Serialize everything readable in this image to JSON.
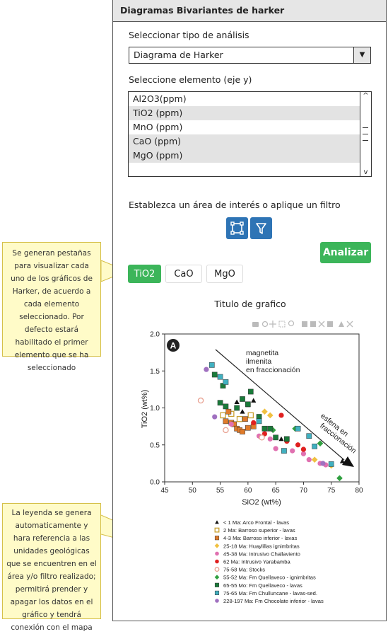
{
  "panel": {
    "title": "Diagramas Bivariantes de harker",
    "analysis_label": "Seleccionar tipo de análisis",
    "analysis_value": "Diagrama de Harker",
    "element_label": "Seleccione elemento (eje y)",
    "elements": [
      {
        "label": "Al2O3(ppm)",
        "selected": false
      },
      {
        "label": "TiO2 (ppm)",
        "selected": true
      },
      {
        "label": "MnO (ppm)",
        "selected": false
      },
      {
        "label": "CaO (ppm)",
        "selected": true
      },
      {
        "label": "MgO (ppm)",
        "selected": true
      }
    ],
    "filter_label": "Establezca un área de interés o aplique un filtro",
    "analyze_button": "Analizar",
    "tabs": [
      "TiO2",
      "CaO",
      "MgO"
    ],
    "active_tab": "TiO2",
    "chart_title": "Titulo de grafico"
  },
  "notes": {
    "tabs_note": "Se generan pestañas para visualizar cada uno de los gráficos de Harker, de acuerdo a cada elemento seleccionado. Por defecto estará habilitado el primer elemento que se ha seleccionado",
    "legend_note": "La leyenda se genera automaticamente y hara referencia a las unidades geológicas que se encuentren en el área y/o filtro realizado; permitirá prender y apagar los datos en el gráfico y tendrá conexión con el mapa"
  },
  "chart_data": {
    "type": "scatter",
    "panel_letter": "A",
    "xlabel": "SiO2 (wt%)",
    "ylabel": "TiO2 (wt%)",
    "xlim": [
      45,
      80
    ],
    "ylim": [
      0.0,
      2.0
    ],
    "xticks": [
      45,
      50,
      55,
      60,
      65,
      70,
      75,
      80
    ],
    "yticks": [
      "0.0",
      "0.5",
      "1.0",
      "1.5",
      "2.0"
    ],
    "annotations": [
      "magnetita",
      "ilmenita",
      "en fraccionación",
      "esfena en",
      "fraccionación"
    ],
    "series": [
      {
        "name": "< 1 Ma: Arco Frontal - lavas",
        "marker": "triangle",
        "color": "#111111",
        "points": [
          [
            58,
            1.08
          ],
          [
            60,
            1.04
          ],
          [
            61,
            1.1
          ],
          [
            59,
            0.95
          ],
          [
            66,
            0.58
          ],
          [
            77,
            0.28
          ]
        ]
      },
      {
        "name": "2 Ma: Barroso superior - lavas",
        "marker": "square-open",
        "color": "#c8a030",
        "points": [
          [
            55.5,
            0.9
          ],
          [
            57,
            0.92
          ],
          [
            58.5,
            0.85
          ],
          [
            60.5,
            0.9
          ]
        ]
      },
      {
        "name": "4-3 Ma: Barroso inferior - lavas",
        "marker": "square",
        "color": "#e07b2a",
        "points": [
          [
            56,
            0.82
          ],
          [
            57,
            0.8
          ],
          [
            57.5,
            0.78
          ],
          [
            58,
            0.72
          ],
          [
            58.5,
            0.7
          ],
          [
            59,
            0.68
          ],
          [
            60,
            0.73
          ],
          [
            61,
            0.75
          ],
          [
            56.5,
            0.95
          ],
          [
            59.5,
            0.85
          ]
        ]
      },
      {
        "name": "25-18 Ma: Huaylillas ignimbritas",
        "marker": "diamond",
        "color": "#f0c040",
        "points": [
          [
            63,
            0.95
          ],
          [
            64,
            0.9
          ],
          [
            72,
            0.3
          ],
          [
            75,
            0.22
          ]
        ]
      },
      {
        "name": "45-38 Ma: Intrusivo Challaviento",
        "marker": "circle",
        "color": "#e070b0",
        "points": [
          [
            57,
            0.78
          ],
          [
            62,
            0.62
          ],
          [
            64,
            0.58
          ],
          [
            65,
            0.45
          ],
          [
            68,
            0.42
          ],
          [
            70,
            0.38
          ],
          [
            71,
            0.3
          ],
          [
            73,
            0.25
          ],
          [
            74,
            0.23
          ]
        ]
      },
      {
        "name": "62 Ma: Intrusivo Yarabamba",
        "marker": "circle",
        "color": "#e02020",
        "points": [
          [
            61,
            0.8
          ],
          [
            63,
            0.65
          ],
          [
            66,
            0.9
          ],
          [
            67,
            0.55
          ],
          [
            69,
            0.5
          ],
          [
            70,
            0.44
          ]
        ]
      },
      {
        "name": "75-58 Ma: Stocks",
        "marker": "circle-open",
        "color": "#e8a090",
        "points": [
          [
            51.5,
            1.1
          ],
          [
            56,
            0.7
          ],
          [
            62.5,
            0.6
          ]
        ]
      },
      {
        "name": "55-52 Ma: Fm Quellaveco - ignimbritas",
        "marker": "diamond",
        "color": "#30a040",
        "points": [
          [
            64.5,
            0.7
          ],
          [
            68.5,
            0.72
          ],
          [
            73,
            0.52
          ],
          [
            76.5,
            0.05
          ]
        ]
      },
      {
        "name": "65-55 Mo: Fm Quellaveco - lavas",
        "marker": "square",
        "color": "#1a7a3a",
        "points": [
          [
            55,
            1.07
          ],
          [
            56,
            1.02
          ],
          [
            58,
            1.0
          ],
          [
            59,
            1.12
          ],
          [
            60,
            1.05
          ],
          [
            62,
            0.88
          ],
          [
            63,
            0.72
          ],
          [
            64,
            0.72
          ],
          [
            65,
            0.6
          ],
          [
            67,
            0.58
          ],
          [
            54,
            1.45
          ],
          [
            55.5,
            1.3
          ],
          [
            60.5,
            1.22
          ]
        ]
      },
      {
        "name": "75-65 Ma: Fm Chulluncane - lavas-sed.",
        "marker": "square",
        "color": "#40b0c0",
        "points": [
          [
            53.5,
            1.58
          ],
          [
            55,
            1.42
          ],
          [
            56,
            1.35
          ],
          [
            62,
            0.82
          ],
          [
            66.5,
            0.42
          ],
          [
            69,
            0.72
          ],
          [
            71,
            0.62
          ],
          [
            72,
            0.48
          ],
          [
            75,
            0.24
          ]
        ]
      },
      {
        "name": "228-197 Ma: Fm Chocolate inferior - lavas",
        "marker": "circle",
        "color": "#a070c0",
        "points": [
          [
            52.5,
            1.52
          ],
          [
            54,
            0.88
          ],
          [
            73.5,
            0.25
          ]
        ]
      }
    ]
  }
}
